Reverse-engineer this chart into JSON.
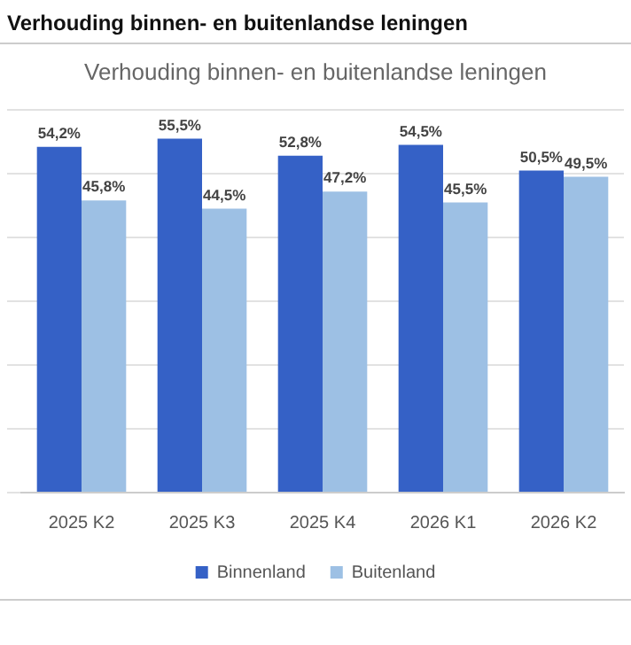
{
  "chart_data": {
    "type": "bar",
    "title": "Verhouding binnen- en buitenlandse leningen",
    "subtitle": "Verhouding binnen- en buitenlandse leningen",
    "categories": [
      "2025 K2",
      "2025 K3",
      "2025 K4",
      "2026 K1",
      "2026 K2"
    ],
    "series": [
      {
        "name": "Binnenland",
        "color": "#3561c6",
        "values": [
          54.2,
          55.5,
          52.8,
          54.5,
          50.5
        ],
        "value_labels": [
          "54,2%",
          "55,5%",
          "52,8%",
          "54,5%",
          "50,5%"
        ]
      },
      {
        "name": "Buitenland",
        "color": "#9dc0e4",
        "values": [
          45.8,
          44.5,
          47.2,
          45.5,
          49.5
        ],
        "value_labels": [
          "45,8%",
          "44,5%",
          "47,2%",
          "45,5%",
          "49,5%"
        ]
      }
    ],
    "tick_labels": "x",
    "grid": "y",
    "legend": "bottom"
  }
}
